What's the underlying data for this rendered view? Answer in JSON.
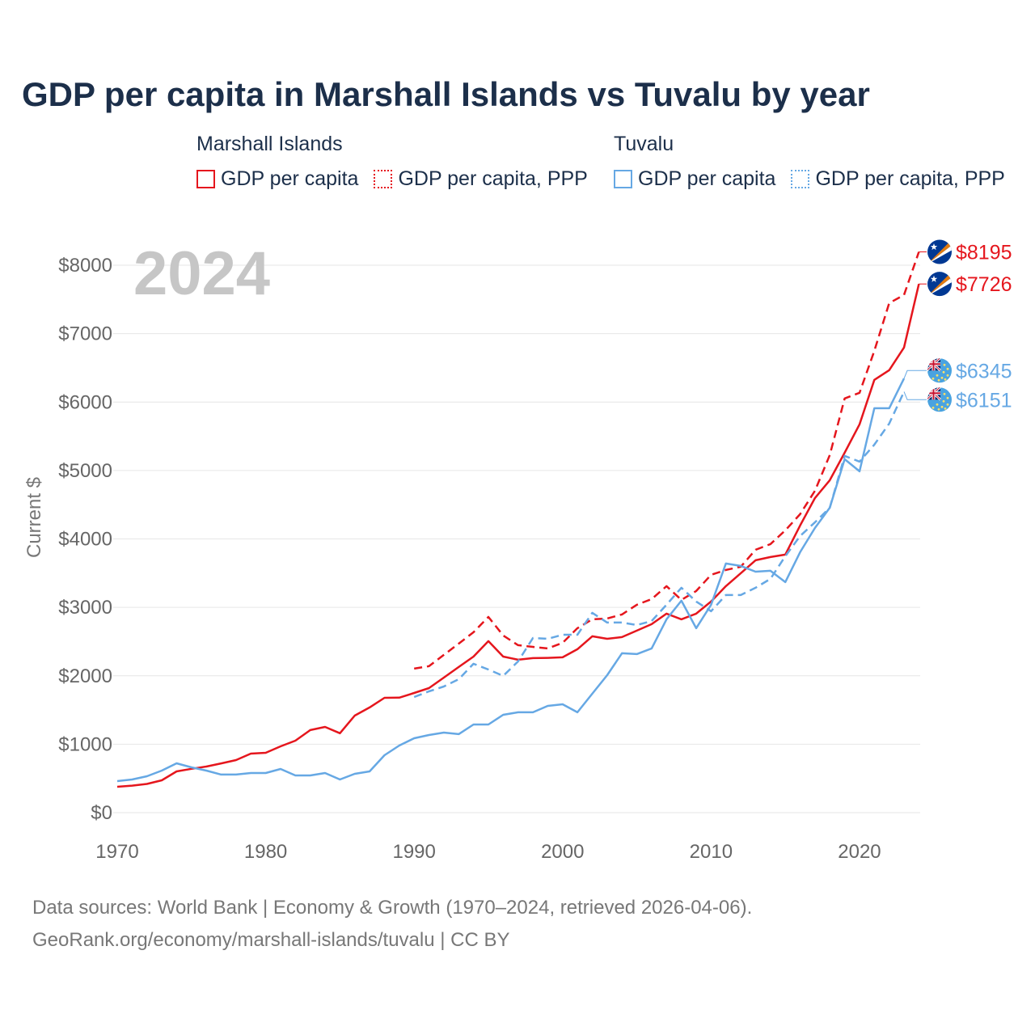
{
  "chart_data": {
    "type": "line",
    "title": "GDP per capita in Marshall Islands vs Tuvalu by year",
    "xlabel": "",
    "ylabel": "Current $",
    "xlim": [
      1970,
      2024
    ],
    "ylim": [
      0,
      8000
    ],
    "grid": true,
    "x_ticks": [
      1970,
      1980,
      1990,
      2000,
      2010,
      2020
    ],
    "x_tick_labels": [
      "1970",
      "1980",
      "1990",
      "2000",
      "2010",
      "2020"
    ],
    "y_ticks": [
      0,
      1000,
      2000,
      3000,
      4000,
      5000,
      6000,
      7000,
      8000
    ],
    "y_tick_labels": [
      "$0",
      "$1000",
      "$2000",
      "$3000",
      "$4000",
      "$5000",
      "$6000",
      "$7000",
      "$8000"
    ],
    "annotation": "2024",
    "legend": [
      {
        "group": "Marshall Islands",
        "color": "#e5161d",
        "items": [
          {
            "label": "GDP per capita",
            "dashed": false
          },
          {
            "label": "GDP per capita, PPP",
            "dashed": true
          }
        ]
      },
      {
        "group": "Tuvalu",
        "color": "#66a8e4",
        "items": [
          {
            "label": "GDP per capita",
            "dashed": false
          },
          {
            "label": "GDP per capita, PPP",
            "dashed": true
          }
        ]
      }
    ],
    "series": [
      {
        "legend_group": 0,
        "legend_item": 0,
        "color": "#e5161d",
        "dashed": false,
        "flag_icon": "marshall-islands-flag-icon",
        "start_year": 1970,
        "values": [
          378,
          395,
          420,
          473,
          603,
          640,
          674,
          720,
          768,
          863,
          875,
          969,
          1052,
          1206,
          1253,
          1160,
          1418,
          1537,
          1678,
          1680,
          1749,
          1820,
          1974,
          2128,
          2281,
          2506,
          2281,
          2234,
          2258,
          2262,
          2270,
          2388,
          2577,
          2541,
          2565,
          2660,
          2754,
          2908,
          2825,
          2908,
          3085,
          3310,
          3499,
          3688,
          3735,
          3771,
          4196,
          4598,
          4858,
          5260,
          5674,
          6324,
          6466,
          6797,
          7726
        ],
        "end_label": "$7726"
      },
      {
        "legend_group": 0,
        "legend_item": 1,
        "color": "#e5161d",
        "dashed": true,
        "flag_icon": "marshall-islands-flag-icon",
        "start_year": 1990,
        "values": [
          2104,
          2140,
          2305,
          2470,
          2636,
          2860,
          2589,
          2447,
          2423,
          2400,
          2482,
          2695,
          2825,
          2837,
          2896,
          3038,
          3121,
          3310,
          3109,
          3239,
          3475,
          3546,
          3593,
          3842,
          3924,
          4125,
          4362,
          4704,
          5225,
          6052,
          6135,
          6749,
          7447,
          7565,
          8195
        ],
        "end_label": "$8195"
      },
      {
        "legend_group": 1,
        "legend_item": 0,
        "color": "#66a8e4",
        "dashed": false,
        "flag_icon": "tuvalu-flag-icon",
        "start_year": 1970,
        "values": [
          461,
          485,
          532,
          615,
          721,
          662,
          615,
          556,
          556,
          579,
          579,
          638,
          544,
          544,
          579,
          485,
          567,
          603,
          839,
          981,
          1087,
          1135,
          1170,
          1147,
          1288,
          1288,
          1430,
          1466,
          1466,
          1560,
          1584,
          1466,
          1738,
          2009,
          2329,
          2317,
          2400,
          2825,
          3097,
          2695,
          3038,
          3641,
          3605,
          3522,
          3534,
          3369,
          3806,
          4161,
          4456,
          5165,
          4988,
          5910,
          5910,
          6345
        ],
        "end_label": "$6345"
      },
      {
        "legend_group": 1,
        "legend_item": 1,
        "color": "#66a8e4",
        "dashed": true,
        "flag_icon": "tuvalu-flag-icon",
        "start_year": 1990,
        "values": [
          1690,
          1773,
          1844,
          1950,
          2175,
          2092,
          1998,
          2210,
          2553,
          2541,
          2600,
          2600,
          2920,
          2778,
          2778,
          2742,
          2801,
          3038,
          3286,
          3085,
          2943,
          3180,
          3180,
          3286,
          3416,
          3747,
          4043,
          4243,
          4456,
          5213,
          5130,
          5378,
          5686,
          6151
        ],
        "end_label": "$6151"
      }
    ]
  },
  "footer": {
    "source": "Data sources: World Bank | Economy & Growth (1970–2024, retrieved 2026-04-06).",
    "credit": "GeoRank.org/economy/marshall-islands/tuvalu | CC BY"
  }
}
